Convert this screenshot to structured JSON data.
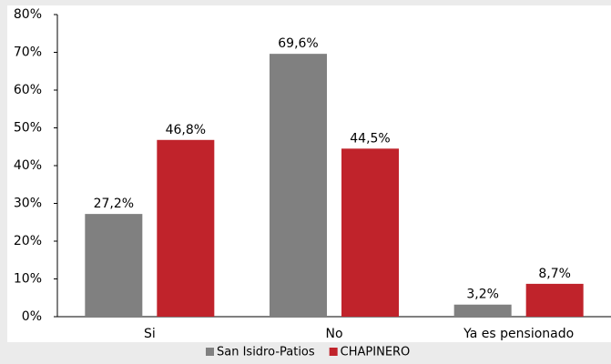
{
  "chart_data": {
    "type": "bar",
    "categories": [
      "Si",
      "No",
      "Ya es pensionado"
    ],
    "series": [
      {
        "name": "San Isidro-Patios",
        "color": "#808080",
        "values": [
          27.2,
          69.6,
          3.2
        ],
        "value_labels": [
          "27,2%",
          "69,6%",
          "3,2%"
        ]
      },
      {
        "name": "CHAPINERO",
        "color": "#c0232b",
        "values": [
          46.8,
          44.5,
          8.7
        ],
        "value_labels": [
          "46,8%",
          "44,5%",
          "8,7%"
        ]
      }
    ],
    "ylim": [
      0,
      80
    ],
    "yticks": [
      {
        "value": 0,
        "label": "0%"
      },
      {
        "value": 10,
        "label": "10%"
      },
      {
        "value": 20,
        "label": "20%"
      },
      {
        "value": 30,
        "label": "30%"
      },
      {
        "value": 40,
        "label": "40%"
      },
      {
        "value": 50,
        "label": "50%"
      },
      {
        "value": 60,
        "label": "60%"
      },
      {
        "value": 70,
        "label": "70%"
      },
      {
        "value": 80,
        "label": "80%"
      }
    ],
    "legend": "bottom"
  }
}
